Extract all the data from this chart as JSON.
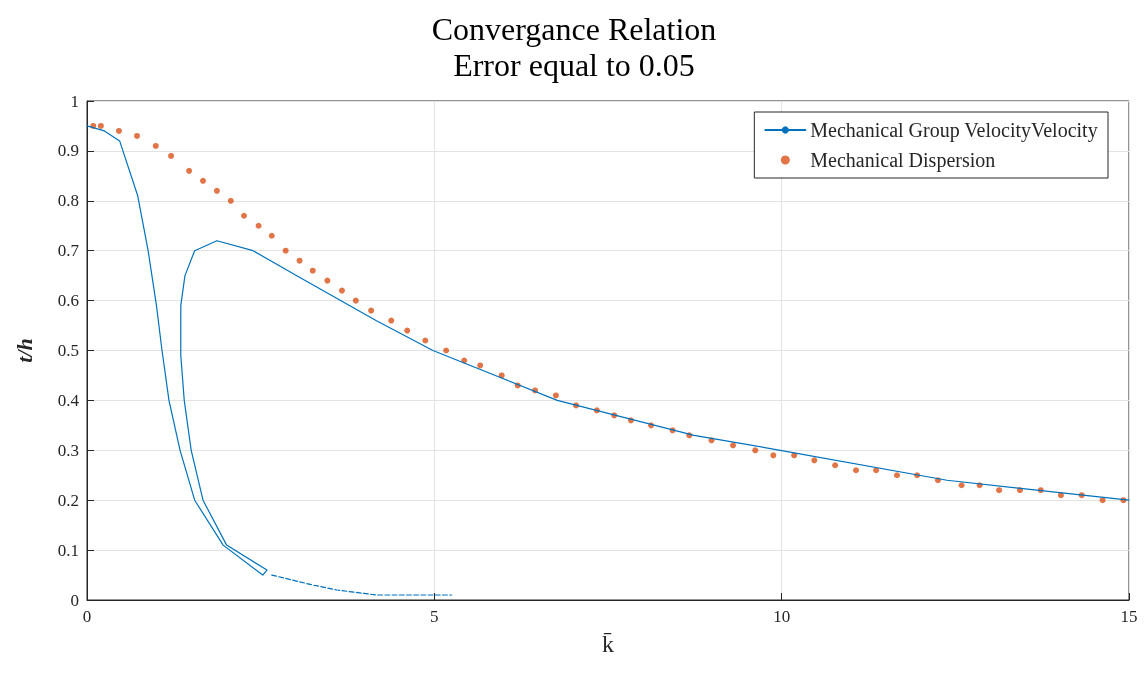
{
  "chart_data": {
    "type": "line",
    "title": "Convergance Relation",
    "subtitle": "Error equal to 0.05",
    "xlabel": "k̄",
    "ylabel": "t/h",
    "xlim": [
      0,
      15
    ],
    "xticks": [
      0,
      5,
      10,
      15
    ],
    "ylim": [
      0,
      1
    ],
    "yticks": [
      0,
      0.1,
      0.2,
      0.3,
      0.4,
      0.5,
      0.6,
      0.7,
      0.8,
      0.9,
      1
    ],
    "grid": true,
    "legend": "top right",
    "series": [
      {
        "name": "Mechanical Group VelocityVelocity",
        "color": "#0072bd",
        "marker": "none",
        "line_style": "solid",
        "x": [
          0,
          0.25,
          0.47,
          0.73,
          0.88,
          1.0,
          1.08,
          1.18,
          1.34,
          1.55,
          1.96,
          2.53,
          2.59,
          2.01,
          1.67,
          1.5,
          1.4,
          1.35,
          1.35,
          1.41,
          1.55,
          1.87,
          2.39,
          3.02,
          4.16,
          4.98,
          6.77,
          8.74,
          9.98,
          12.38,
          15
        ],
        "values": [
          0.95,
          0.94,
          0.92,
          0.81,
          0.7,
          0.59,
          0.5,
          0.4,
          0.3,
          0.2,
          0.11,
          0.05,
          0.06,
          0.11,
          0.2,
          0.3,
          0.4,
          0.49,
          0.59,
          0.65,
          0.7,
          0.72,
          0.7,
          0.65,
          0.56,
          0.5,
          0.4,
          0.33,
          0.3,
          0.24,
          0.2
        ]
      },
      {
        "color": "#0072bd",
        "marker": "none",
        "line_style": "dashed",
        "x": [
          2.66,
          3.25,
          3.6,
          4.17,
          5.25
        ],
        "values": [
          0.05,
          0.03,
          0.02,
          0.01,
          0.01
        ]
      },
      {
        "name": "Mechanical Dispersion",
        "type": "scatter",
        "color": "#d95319",
        "marker": "circle",
        "x": [
          0.09,
          0.2,
          0.46,
          0.72,
          0.99,
          1.21,
          1.47,
          1.67,
          1.87,
          2.07,
          2.26,
          2.47,
          2.66,
          2.86,
          3.06,
          3.25,
          3.46,
          3.67,
          3.87,
          4.09,
          4.38,
          4.61,
          4.87,
          5.17,
          5.43,
          5.66,
          5.97,
          6.2,
          6.45,
          6.75,
          7.04,
          7.34,
          7.59,
          7.83,
          8.12,
          8.43,
          8.67,
          8.99,
          9.3,
          9.62,
          9.88,
          10.18,
          10.47,
          10.77,
          11.07,
          11.36,
          11.66,
          11.95,
          12.25,
          12.59,
          12.85,
          13.13,
          13.43,
          13.73,
          14.02,
          14.32,
          14.62,
          14.92
        ],
        "values": [
          0.95,
          0.95,
          0.94,
          0.93,
          0.91,
          0.89,
          0.86,
          0.84,
          0.82,
          0.8,
          0.77,
          0.75,
          0.73,
          0.7,
          0.68,
          0.66,
          0.64,
          0.62,
          0.6,
          0.58,
          0.56,
          0.54,
          0.52,
          0.5,
          0.48,
          0.47,
          0.45,
          0.43,
          0.42,
          0.41,
          0.39,
          0.38,
          0.37,
          0.36,
          0.35,
          0.34,
          0.33,
          0.32,
          0.31,
          0.3,
          0.29,
          0.29,
          0.28,
          0.27,
          0.26,
          0.26,
          0.25,
          0.25,
          0.24,
          0.23,
          0.23,
          0.22,
          0.22,
          0.22,
          0.21,
          0.21,
          0.2,
          0.2
        ]
      }
    ]
  }
}
